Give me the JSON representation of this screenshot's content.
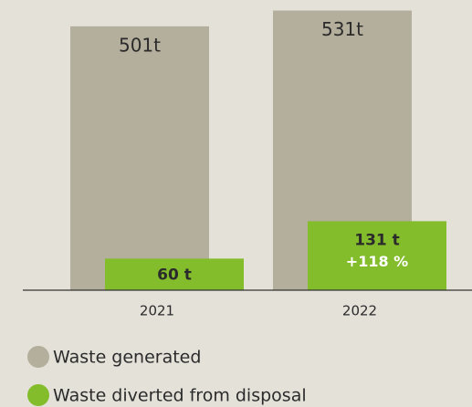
{
  "chart_data": {
    "type": "bar",
    "categories": [
      "2021",
      "2022"
    ],
    "series": [
      {
        "name": "Waste generated",
        "color": "#b4ae9c",
        "values": [
          501,
          531
        ],
        "value_labels": [
          "501t",
          "531t"
        ]
      },
      {
        "name": "Waste diverted from disposal",
        "color": "#83bd2b",
        "values": [
          60,
          131
        ],
        "value_labels": [
          "60 t",
          "131 t"
        ]
      }
    ],
    "annotation": "+118 %",
    "ylim": [
      0,
      551
    ]
  }
}
